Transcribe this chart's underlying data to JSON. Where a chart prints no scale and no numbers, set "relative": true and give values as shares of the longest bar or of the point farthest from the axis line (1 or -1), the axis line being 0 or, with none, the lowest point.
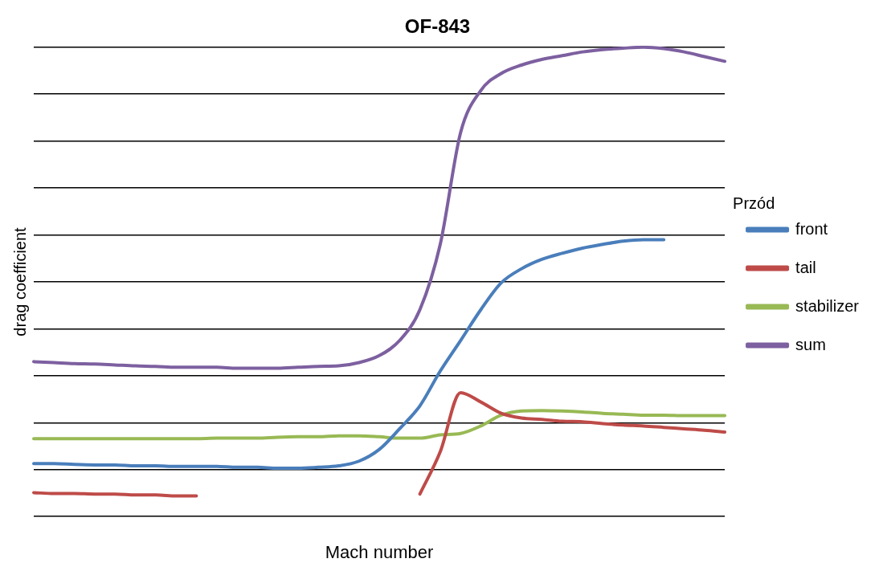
{
  "chart_data": {
    "type": "line",
    "title": "OF-843",
    "xlabel": "Mach number",
    "ylabel": "drag coefficient",
    "relative": true,
    "grid": "y",
    "legend": "right",
    "marker": "none",
    "line_style": "solid",
    "annotations": [
      "Przód"
    ],
    "categories": [
      null,
      null,
      null,
      null,
      null,
      null,
      null,
      null,
      null,
      null,
      null,
      null,
      null,
      null,
      null,
      null,
      null,
      null,
      null,
      null,
      null,
      null,
      null,
      null,
      null,
      null,
      null,
      null,
      null,
      null,
      null,
      null,
      null,
      null,
      null
    ],
    "series": [
      {
        "name": "front",
        "color": "#4a7ebb",
        "values": [
          0.113,
          0.113,
          0.111,
          0.11,
          0.11,
          0.108,
          0.108,
          0.107,
          0.107,
          0.107,
          0.105,
          0.105,
          0.103,
          0.103,
          0.105,
          0.108,
          0.118,
          0.143,
          0.187,
          0.236,
          0.31,
          0.375,
          0.441,
          0.498,
          0.528,
          0.548,
          0.561,
          0.572,
          0.58,
          0.587,
          0.59,
          0.59,
          null,
          null,
          null
        ]
      },
      {
        "name": "tail",
        "color": "#be4b48",
        "values": [
          0.051,
          0.049,
          0.049,
          0.048,
          0.048,
          0.046,
          0.046,
          0.044,
          0.044,
          null,
          null,
          null,
          null,
          null,
          null,
          null,
          null,
          null,
          null,
          0.048,
          0.138,
          0.264,
          0.244,
          0.22,
          0.21,
          0.207,
          0.203,
          0.202,
          0.198,
          0.195,
          0.193,
          0.19,
          0.187,
          0.184,
          0.18
        ]
      },
      {
        "name": "stabilizer",
        "color": "#98b954",
        "values": [
          0.166,
          0.166,
          0.166,
          0.166,
          0.166,
          0.166,
          0.166,
          0.166,
          0.166,
          0.167,
          0.167,
          0.167,
          0.169,
          0.17,
          0.17,
          0.172,
          0.172,
          0.17,
          0.167,
          0.167,
          0.174,
          0.177,
          0.193,
          0.216,
          0.225,
          0.226,
          0.225,
          0.223,
          0.22,
          0.218,
          0.216,
          0.216,
          0.215,
          0.215,
          0.215
        ]
      },
      {
        "name": "sum",
        "color": "#7d60a0",
        "values": [
          0.33,
          0.328,
          0.326,
          0.325,
          0.323,
          0.321,
          0.32,
          0.318,
          0.318,
          0.318,
          0.316,
          0.316,
          0.316,
          0.318,
          0.32,
          0.321,
          0.328,
          0.343,
          0.375,
          0.441,
          0.58,
          0.818,
          0.908,
          0.944,
          0.962,
          0.974,
          0.982,
          0.99,
          0.995,
          0.998,
          1,
          0.997,
          0.99,
          0.98,
          0.97
        ]
      }
    ]
  }
}
